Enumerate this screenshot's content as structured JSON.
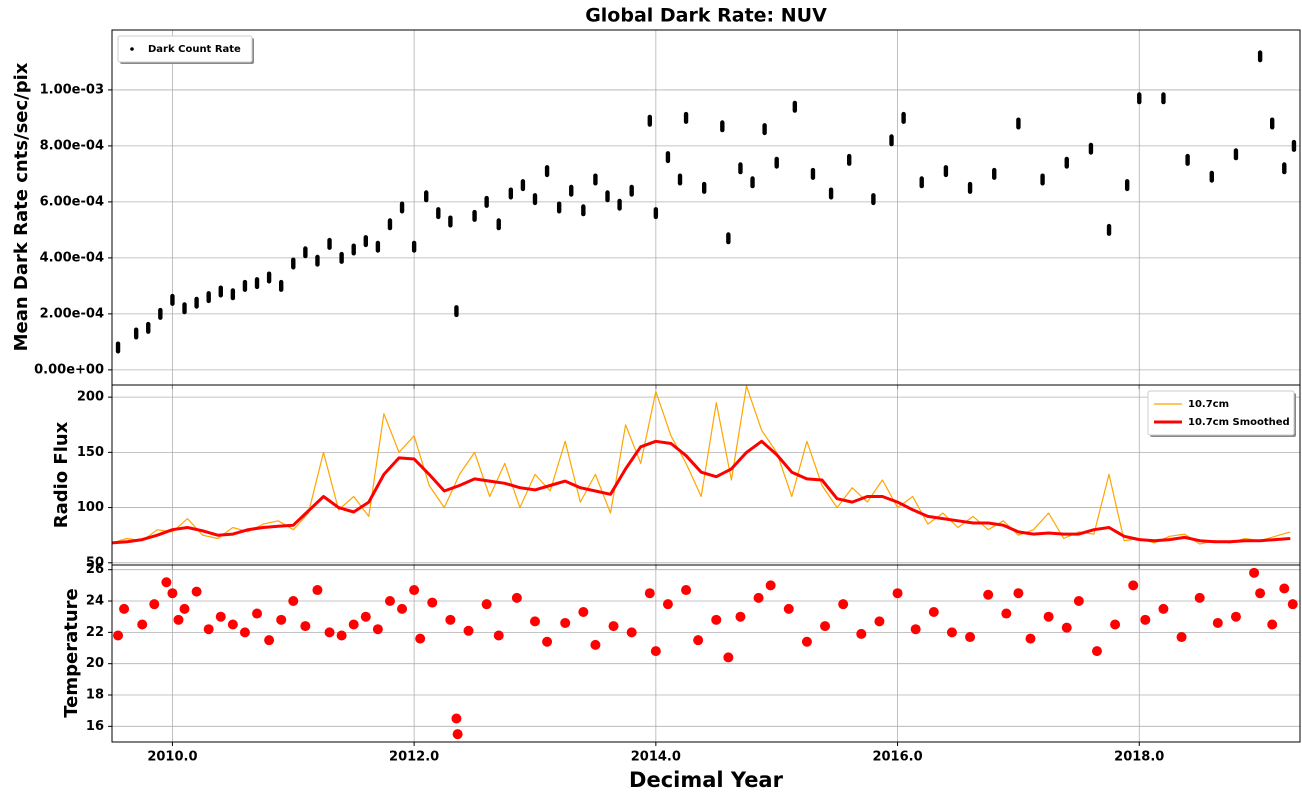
{
  "chart_data": [
    {
      "type": "scatter",
      "title": "Global Dark Rate: NUV",
      "ylabel": "Mean Dark Rate cnts/sec/pix",
      "legend": "upper left",
      "grid": true,
      "xlim": [
        2009.5,
        2019.33
      ],
      "ylim": [
        -5.4e-05,
        0.001214
      ],
      "xticks": [
        2010,
        2012,
        2014,
        2016,
        2018
      ],
      "yticks": [
        {
          "value": 0,
          "label": "0.00e+00"
        },
        {
          "value": 0.0002,
          "label": "2.00e-04"
        },
        {
          "value": 0.0004,
          "label": "4.00e-04"
        },
        {
          "value": 0.0006,
          "label": "6.00e-04"
        },
        {
          "value": 0.0008,
          "label": "8.00e-04"
        },
        {
          "value": 0.001,
          "label": "1.00e-03"
        }
      ],
      "series": [
        {
          "name": "Dark Count Rate",
          "color": "#000000",
          "x": [
            2009.55,
            2009.7,
            2009.8,
            2009.9,
            2010.0,
            2010.1,
            2010.2,
            2010.3,
            2010.4,
            2010.5,
            2010.6,
            2010.7,
            2010.8,
            2010.9,
            2011.0,
            2011.1,
            2011.2,
            2011.3,
            2011.4,
            2011.5,
            2011.6,
            2011.7,
            2011.8,
            2011.9,
            2012.0,
            2012.1,
            2012.2,
            2012.3,
            2012.35,
            2012.5,
            2012.6,
            2012.7,
            2012.8,
            2012.9,
            2013.0,
            2013.1,
            2013.2,
            2013.3,
            2013.4,
            2013.5,
            2013.6,
            2013.7,
            2013.8,
            2013.95,
            2014.0,
            2014.1,
            2014.2,
            2014.25,
            2014.4,
            2014.55,
            2014.6,
            2014.7,
            2014.8,
            2014.9,
            2015.0,
            2015.15,
            2015.3,
            2015.45,
            2015.6,
            2015.8,
            2015.95,
            2016.05,
            2016.2,
            2016.4,
            2016.6,
            2016.8,
            2017.0,
            2017.2,
            2017.4,
            2017.6,
            2017.75,
            2017.9,
            2018.0,
            2018.2,
            2018.4,
            2018.6,
            2018.8,
            2019.0,
            2019.1,
            2019.2,
            2019.28
          ],
          "values": [
            8e-05,
            0.00013,
            0.00015,
            0.0002,
            0.00025,
            0.00022,
            0.00024,
            0.00026,
            0.00028,
            0.00027,
            0.0003,
            0.00031,
            0.00033,
            0.0003,
            0.00038,
            0.00042,
            0.00039,
            0.00045,
            0.0004,
            0.00043,
            0.00046,
            0.00044,
            0.00052,
            0.00058,
            0.00044,
            0.00062,
            0.00056,
            0.00053,
            0.00021,
            0.00055,
            0.0006,
            0.00052,
            0.00063,
            0.00066,
            0.00061,
            0.00071,
            0.00058,
            0.00064,
            0.00057,
            0.00068,
            0.00062,
            0.00059,
            0.00064,
            0.00089,
            0.00056,
            0.00076,
            0.00068,
            0.0009,
            0.00065,
            0.00087,
            0.00047,
            0.00072,
            0.00067,
            0.00086,
            0.00074,
            0.00094,
            0.0007,
            0.00063,
            0.00075,
            0.00061,
            0.00082,
            0.0009,
            0.00067,
            0.00071,
            0.00065,
            0.0007,
            0.00088,
            0.00068,
            0.00074,
            0.00079,
            0.0005,
            0.00066,
            0.00097,
            0.00097,
            0.00075,
            0.00069,
            0.00077,
            0.00112,
            0.00088,
            0.00072,
            0.0008
          ]
        }
      ]
    },
    {
      "type": "line",
      "ylabel": "Radio Flux",
      "legend": "upper right",
      "grid": true,
      "xlim": [
        2009.5,
        2019.33
      ],
      "ylim": [
        48,
        211
      ],
      "xticks": [
        2010,
        2012,
        2014,
        2016,
        2018
      ],
      "yticks": [
        50,
        100,
        150,
        200
      ],
      "x": [
        2009.5,
        2009.625,
        2009.75,
        2009.875,
        2010.0,
        2010.125,
        2010.25,
        2010.375,
        2010.5,
        2010.625,
        2010.75,
        2010.875,
        2011.0,
        2011.125,
        2011.25,
        2011.375,
        2011.5,
        2011.625,
        2011.75,
        2011.875,
        2012.0,
        2012.125,
        2012.25,
        2012.375,
        2012.5,
        2012.625,
        2012.75,
        2012.875,
        2013.0,
        2013.125,
        2013.25,
        2013.375,
        2013.5,
        2013.625,
        2013.75,
        2013.875,
        2014.0,
        2014.125,
        2014.25,
        2014.375,
        2014.5,
        2014.625,
        2014.75,
        2014.875,
        2015.0,
        2015.125,
        2015.25,
        2015.375,
        2015.5,
        2015.625,
        2015.75,
        2015.875,
        2016.0,
        2016.125,
        2016.25,
        2016.375,
        2016.5,
        2016.625,
        2016.75,
        2016.875,
        2017.0,
        2017.125,
        2017.25,
        2017.375,
        2017.5,
        2017.625,
        2017.75,
        2017.875,
        2018.0,
        2018.125,
        2018.25,
        2018.375,
        2018.5,
        2018.625,
        2018.75,
        2018.875,
        2019.0,
        2019.125,
        2019.25
      ],
      "series": [
        {
          "name": "10.7cm",
          "color": "#ffa500",
          "width": 1.2,
          "values": [
            68,
            72,
            70,
            80,
            78,
            90,
            75,
            72,
            82,
            78,
            85,
            88,
            80,
            95,
            150,
            98,
            110,
            92,
            185,
            150,
            165,
            120,
            100,
            130,
            150,
            110,
            140,
            100,
            130,
            115,
            160,
            105,
            130,
            95,
            175,
            140,
            205,
            165,
            140,
            110,
            195,
            125,
            210,
            170,
            150,
            110,
            160,
            120,
            100,
            118,
            105,
            125,
            100,
            110,
            85,
            95,
            82,
            92,
            80,
            88,
            75,
            80,
            95,
            72,
            78,
            76,
            130,
            70,
            72,
            68,
            74,
            76,
            67,
            70,
            68,
            72,
            70,
            74,
            78
          ]
        },
        {
          "name": "10.7cm Smoothed",
          "color": "#ff0000",
          "width": 3,
          "values": [
            68,
            69,
            71,
            75,
            80,
            82,
            79,
            75,
            76,
            80,
            82,
            83,
            84,
            97,
            110,
            100,
            96,
            105,
            130,
            145,
            144,
            130,
            115,
            120,
            126,
            124,
            122,
            118,
            116,
            120,
            124,
            118,
            115,
            112,
            135,
            155,
            160,
            158,
            147,
            132,
            128,
            135,
            150,
            160,
            148,
            132,
            126,
            125,
            108,
            105,
            110,
            110,
            105,
            98,
            92,
            90,
            88,
            86,
            86,
            84,
            78,
            76,
            77,
            76,
            76,
            80,
            82,
            74,
            71,
            70,
            71,
            73,
            70,
            69,
            69,
            70,
            70,
            71,
            72
          ]
        }
      ]
    },
    {
      "type": "scatter",
      "xlabel": "Decimal Year",
      "ylabel": "Temperature",
      "grid": true,
      "xlim": [
        2009.5,
        2019.33
      ],
      "ylim": [
        15,
        26.3
      ],
      "xticks": [
        {
          "value": 2010,
          "label": "2010.0"
        },
        {
          "value": 2012,
          "label": "2012.0"
        },
        {
          "value": 2014,
          "label": "2014.0"
        },
        {
          "value": 2016,
          "label": "2016.0"
        },
        {
          "value": 2018,
          "label": "2018.0"
        }
      ],
      "yticks": [
        16,
        18,
        20,
        22,
        24,
        26
      ],
      "series": [
        {
          "color": "#ff0000",
          "x": [
            2009.55,
            2009.6,
            2009.75,
            2009.85,
            2009.95,
            2010.0,
            2010.05,
            2010.1,
            2010.2,
            2010.3,
            2010.4,
            2010.5,
            2010.6,
            2010.7,
            2010.8,
            2010.9,
            2011.0,
            2011.1,
            2011.2,
            2011.3,
            2011.4,
            2011.5,
            2011.6,
            2011.7,
            2011.8,
            2011.9,
            2012.0,
            2012.05,
            2012.15,
            2012.3,
            2012.35,
            2012.36,
            2012.45,
            2012.6,
            2012.7,
            2012.85,
            2013.0,
            2013.1,
            2013.25,
            2013.4,
            2013.5,
            2013.65,
            2013.8,
            2013.95,
            2014.0,
            2014.1,
            2014.25,
            2014.35,
            2014.5,
            2014.6,
            2014.7,
            2014.85,
            2014.95,
            2015.1,
            2015.25,
            2015.4,
            2015.55,
            2015.7,
            2015.85,
            2016.0,
            2016.15,
            2016.3,
            2016.45,
            2016.6,
            2016.75,
            2016.9,
            2017.0,
            2017.1,
            2017.25,
            2017.4,
            2017.5,
            2017.65,
            2017.8,
            2017.95,
            2018.05,
            2018.2,
            2018.35,
            2018.5,
            2018.65,
            2018.8,
            2018.95,
            2019.0,
            2019.1,
            2019.2,
            2019.27
          ],
          "values": [
            21.8,
            23.5,
            22.5,
            23.8,
            25.2,
            24.5,
            22.8,
            23.5,
            24.6,
            22.2,
            23.0,
            22.5,
            22.0,
            23.2,
            21.5,
            22.8,
            24.0,
            22.4,
            24.7,
            22.0,
            21.8,
            22.5,
            23.0,
            22.2,
            24.0,
            23.5,
            24.7,
            21.6,
            23.9,
            22.8,
            16.5,
            15.5,
            22.1,
            23.8,
            21.8,
            24.2,
            22.7,
            21.4,
            22.6,
            23.3,
            21.2,
            22.4,
            22.0,
            24.5,
            20.8,
            23.8,
            24.7,
            21.5,
            22.8,
            20.4,
            23.0,
            24.2,
            25.0,
            23.5,
            21.4,
            22.4,
            23.8,
            21.9,
            22.7,
            24.5,
            22.2,
            23.3,
            22.0,
            21.7,
            24.4,
            23.2,
            24.5,
            21.6,
            23.0,
            22.3,
            24.0,
            20.8,
            22.5,
            25.0,
            22.8,
            23.5,
            21.7,
            24.2,
            22.6,
            23.0,
            25.8,
            24.5,
            22.5,
            24.8,
            23.8
          ]
        }
      ]
    }
  ]
}
